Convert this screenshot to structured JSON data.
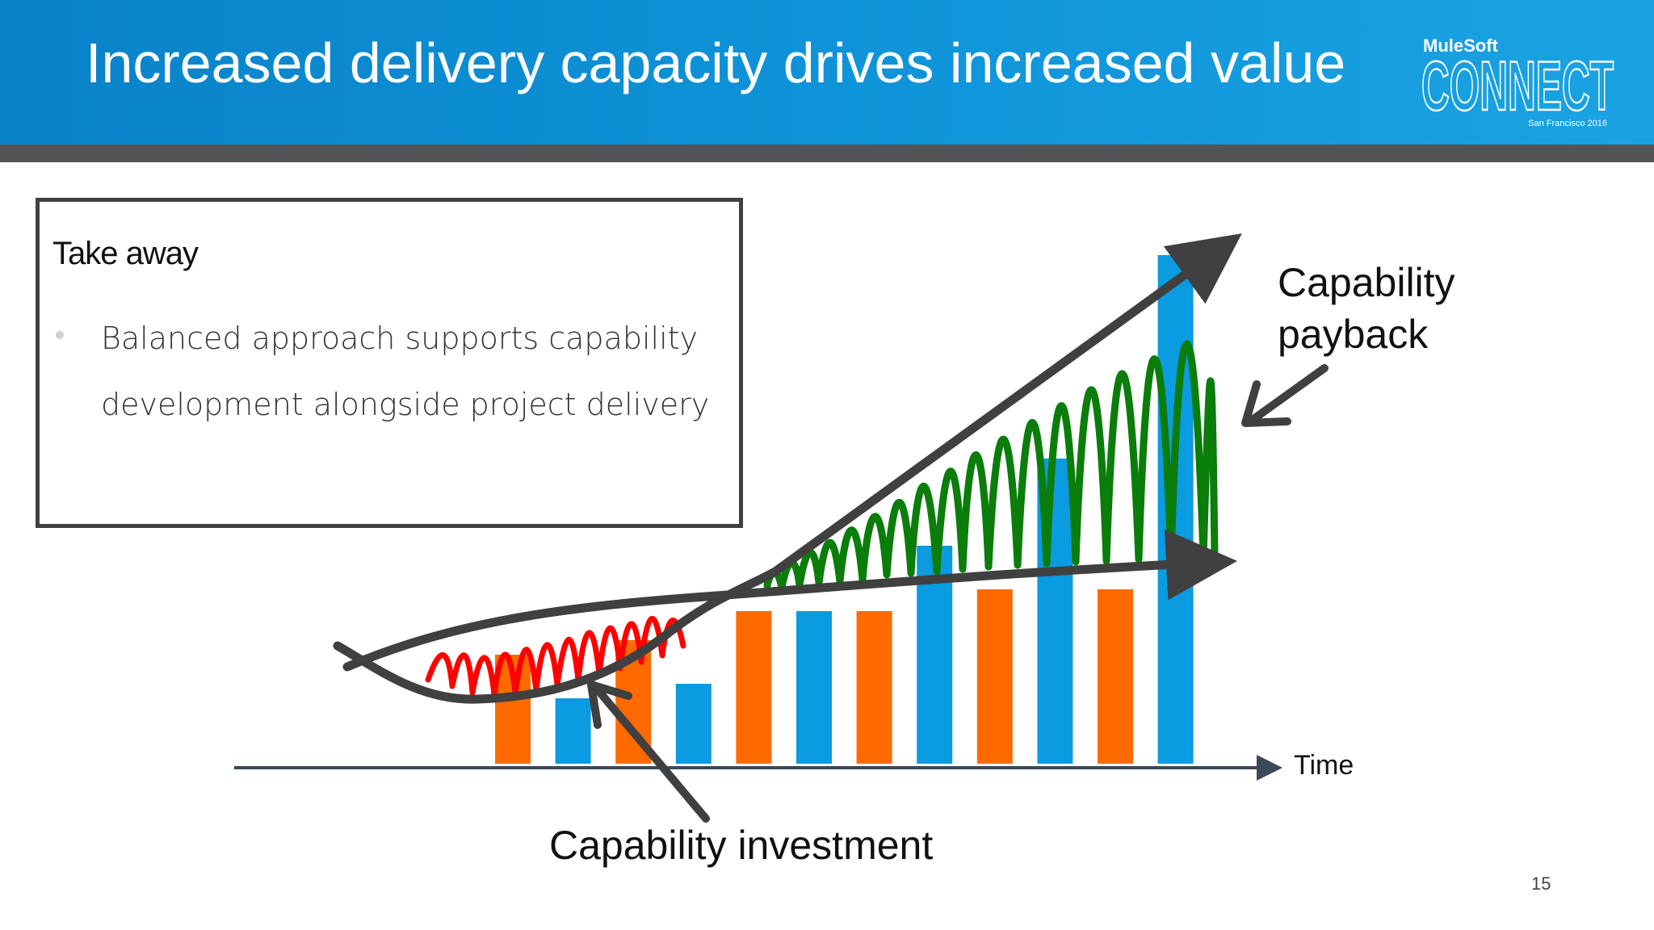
{
  "slide": {
    "title": "Increased delivery capacity drives increased value",
    "page_number": "15"
  },
  "logo": {
    "brand": "MuleSoft",
    "product": "CONNECT",
    "event": "San Francisco 2016"
  },
  "takeaway": {
    "title": "Take away",
    "bullet": "Balanced approach supports capability development alongside project delivery"
  },
  "chart_data": {
    "type": "bar",
    "xlabel": "Time",
    "ylabel": "",
    "values": [
      15,
      9,
      17,
      11,
      21,
      21,
      21,
      30,
      24,
      42,
      24,
      70
    ],
    "bar_colors": [
      "#ff6a00",
      "#0a9be0",
      "#ff6a00",
      "#0a9be0",
      "#ff6a00",
      "#0a9be0",
      "#ff6a00",
      "#0a9be0",
      "#ff6a00",
      "#0a9be0",
      "#ff6a00",
      "#0a9be0"
    ],
    "ylim": [
      0,
      80
    ],
    "annotations": {
      "payback": "Capability payback",
      "investment": "Capability investment"
    },
    "colors": {
      "investment_scribble": "#ff0000",
      "payback_scribble": "#0a7d0a",
      "trend_lines": "#404040",
      "axis": "#3a4a5a"
    }
  }
}
